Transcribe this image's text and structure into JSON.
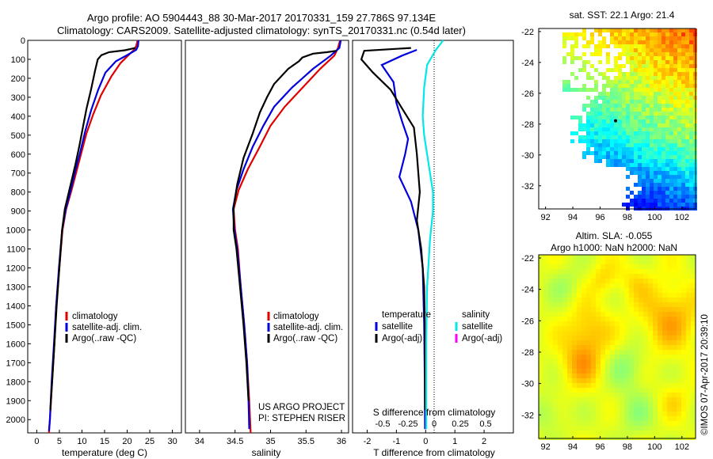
{
  "header": {
    "line1": "Argo profile: AO 5904443_88 30-Mar-2017 20170331_159 27.786S 97.134E",
    "line2": "Climatology: CARS2009. Satellite-adjusted climatology: synTS_20170331.nc (0.54d later)"
  },
  "colors": {
    "climatology": "#e00000",
    "satellite": "#0000dd",
    "argo": "#000000",
    "sal_satellite": "#00e8e8",
    "sal_argo": "#ff00ff"
  },
  "chart_data": [
    {
      "type": "line",
      "id": "temperature-profile",
      "xlabel": "temperature (deg C)",
      "xlim": [
        -2,
        32
      ],
      "ylim": [
        0,
        2070
      ],
      "y_inverted": true,
      "xticks": [
        0,
        5,
        10,
        15,
        20,
        25,
        30
      ],
      "yticks": [
        0,
        100,
        200,
        300,
        400,
        500,
        600,
        700,
        800,
        900,
        1000,
        1100,
        1200,
        1300,
        1400,
        1500,
        1600,
        1700,
        1800,
        1900,
        2000
      ],
      "legend": [
        "climatology",
        "satellite-adj. clim.",
        "Argo(..raw -QC)"
      ],
      "series": [
        {
          "name": "climatology",
          "color": "#e00000",
          "points": [
            [
              22.3,
              0
            ],
            [
              22.0,
              30
            ],
            [
              21.5,
              50
            ],
            [
              20.2,
              80
            ],
            [
              18.5,
              120
            ],
            [
              16.5,
              190
            ],
            [
              14.2,
              290
            ],
            [
              12.5,
              390
            ],
            [
              11.0,
              490
            ],
            [
              9.9,
              590
            ],
            [
              8.8,
              690
            ],
            [
              7.7,
              790
            ],
            [
              6.5,
              890
            ],
            [
              5.7,
              1000
            ],
            [
              5.0,
              1200
            ],
            [
              4.3,
              1400
            ],
            [
              3.9,
              1600
            ],
            [
              3.4,
              1800
            ],
            [
              2.9,
              2000
            ],
            [
              2.7,
              2070
            ]
          ]
        },
        {
          "name": "satellite-adj. clim.",
          "color": "#0000dd",
          "points": [
            [
              22.5,
              0
            ],
            [
              22.4,
              30
            ],
            [
              22.0,
              50
            ],
            [
              20.2,
              75
            ],
            [
              17.5,
              110
            ],
            [
              15.2,
              170
            ],
            [
              13.6,
              260
            ],
            [
              12.0,
              370
            ],
            [
              10.7,
              480
            ],
            [
              9.6,
              590
            ],
            [
              8.5,
              690
            ],
            [
              7.5,
              790
            ],
            [
              6.4,
              890
            ],
            [
              5.6,
              1000
            ],
            [
              4.9,
              1200
            ],
            [
              4.3,
              1400
            ],
            [
              3.8,
              1600
            ],
            [
              3.3,
              1800
            ],
            [
              2.9,
              2000
            ],
            [
              2.7,
              2060
            ]
          ]
        },
        {
          "name": "Argo(..raw -QC)",
          "color": "#000000",
          "points": [
            [
              21.8,
              40
            ],
            [
              19.5,
              52
            ],
            [
              16.0,
              62
            ],
            [
              14.3,
              78
            ],
            [
              13.5,
              100
            ],
            [
              12.9,
              160
            ],
            [
              12.0,
              260
            ],
            [
              11.0,
              360
            ],
            [
              10.2,
              460
            ],
            [
              9.4,
              560
            ],
            [
              8.5,
              660
            ],
            [
              7.2,
              790
            ],
            [
              6.2,
              890
            ],
            [
              5.6,
              1000
            ],
            [
              5.0,
              1200
            ],
            [
              4.4,
              1400
            ],
            [
              3.9,
              1600
            ],
            [
              3.4,
              1800
            ],
            [
              3.0,
              1950
            ]
          ]
        }
      ]
    },
    {
      "type": "line",
      "id": "salinity-profile",
      "xlabel": "salinity",
      "xlim": [
        33.8,
        36.1
      ],
      "ylim": [
        0,
        2070
      ],
      "y_inverted": true,
      "xticks": [
        34,
        34.5,
        35,
        35.5,
        36
      ],
      "legend": [
        "climatology",
        "satellite-adj. clim.",
        "Argo(..raw -QC)"
      ],
      "annotation": [
        "US ARGO PROJECT",
        "PI: STEPHEN RISER"
      ],
      "series": [
        {
          "name": "climatology",
          "color": "#e00000",
          "points": [
            [
              35.98,
              0
            ],
            [
              35.95,
              40
            ],
            [
              35.9,
              80
            ],
            [
              35.7,
              150
            ],
            [
              35.45,
              250
            ],
            [
              35.2,
              350
            ],
            [
              35.0,
              450
            ],
            [
              34.85,
              560
            ],
            [
              34.68,
              680
            ],
            [
              34.55,
              790
            ],
            [
              34.48,
              890
            ],
            [
              34.5,
              1000
            ],
            [
              34.54,
              1100
            ],
            [
              34.58,
              1300
            ],
            [
              34.63,
              1500
            ],
            [
              34.67,
              1700
            ],
            [
              34.7,
              1900
            ],
            [
              34.72,
              2070
            ]
          ]
        },
        {
          "name": "satellite-adj. clim.",
          "color": "#0000dd",
          "points": [
            [
              35.99,
              0
            ],
            [
              35.97,
              40
            ],
            [
              35.85,
              80
            ],
            [
              35.6,
              150
            ],
            [
              35.3,
              250
            ],
            [
              35.05,
              350
            ],
            [
              34.9,
              450
            ],
            [
              34.75,
              560
            ],
            [
              34.62,
              680
            ],
            [
              34.52,
              790
            ],
            [
              34.47,
              890
            ],
            [
              34.49,
              1000
            ],
            [
              34.53,
              1100
            ],
            [
              34.58,
              1300
            ],
            [
              34.63,
              1500
            ],
            [
              34.67,
              1700
            ],
            [
              34.69,
              1900
            ],
            [
              34.7,
              2050
            ]
          ]
        },
        {
          "name": "Argo(..raw -QC)",
          "color": "#000000",
          "points": [
            [
              35.93,
              55
            ],
            [
              35.8,
              62
            ],
            [
              35.6,
              70
            ],
            [
              35.45,
              90
            ],
            [
              35.4,
              110
            ],
            [
              35.25,
              150
            ],
            [
              35.05,
              230
            ],
            [
              34.95,
              300
            ],
            [
              34.85,
              380
            ],
            [
              34.75,
              490
            ],
            [
              34.62,
              620
            ],
            [
              34.53,
              760
            ],
            [
              34.48,
              880
            ],
            [
              34.48,
              1000
            ],
            [
              34.52,
              1100
            ],
            [
              34.57,
              1300
            ],
            [
              34.62,
              1500
            ],
            [
              34.66,
              1700
            ],
            [
              34.69,
              1900
            ]
          ]
        }
      ]
    },
    {
      "type": "line",
      "id": "difference-profile",
      "xlabel": "T difference from climatology",
      "xlabel_top": "S difference from climatology",
      "xlim": [
        -2.5,
        3.0
      ],
      "ylim": [
        0,
        2070
      ],
      "y_inverted": true,
      "xticks": [
        -2,
        -1,
        0,
        1,
        2
      ],
      "xticks_top": [
        "-0.5",
        "-0.25",
        "0",
        "0.25",
        "0.5"
      ],
      "legend_temperature_title": "temperature",
      "legend_salinity_title": "salinity",
      "legend": [
        "satellite",
        "Argo(-adj)",
        "satellite",
        "Argo(-adj)"
      ],
      "series": [
        {
          "name": "temperature satellite",
          "color": "#0000dd",
          "points": [
            [
              -0.3,
              50
            ],
            [
              -0.8,
              80
            ],
            [
              -1.5,
              130
            ],
            [
              -1.1,
              220
            ],
            [
              -1.0,
              330
            ],
            [
              -0.8,
              430
            ],
            [
              -0.6,
              520
            ],
            [
              -0.7,
              600
            ],
            [
              -0.9,
              720
            ],
            [
              -0.5,
              850
            ],
            [
              -0.25,
              1000
            ],
            [
              -0.1,
              1200
            ],
            [
              -0.05,
              1500
            ],
            [
              -0.03,
              1800
            ],
            [
              -0.02,
              2050
            ]
          ]
        },
        {
          "name": "temperature Argo(-adj)",
          "color": "#000000",
          "points": [
            [
              -0.5,
              40
            ],
            [
              -2.1,
              55
            ],
            [
              -2.2,
              100
            ],
            [
              -1.8,
              170
            ],
            [
              -1.2,
              260
            ],
            [
              -0.8,
              360
            ],
            [
              -0.4,
              460
            ],
            [
              -0.3,
              600
            ],
            [
              -0.2,
              800
            ],
            [
              -0.3,
              950
            ],
            [
              -0.15,
              1100
            ],
            [
              -0.05,
              1300
            ],
            [
              -0.03,
              1500
            ],
            [
              -0.02,
              1950
            ]
          ]
        },
        {
          "name": "salinity satellite",
          "color": "#00e8e8",
          "points": [
            [
              0.6,
              0
            ],
            [
              0.35,
              50
            ],
            [
              0.05,
              130
            ],
            [
              -0.05,
              250
            ],
            [
              -0.1,
              400
            ],
            [
              -0.05,
              500
            ],
            [
              0.05,
              600
            ],
            [
              0.15,
              700
            ],
            [
              0.25,
              800
            ],
            [
              0.25,
              900
            ],
            [
              0.15,
              1050
            ],
            [
              0.05,
              1300
            ],
            [
              0.02,
              1600
            ],
            [
              0.02,
              2050
            ]
          ]
        }
      ]
    },
    {
      "type": "heatmap",
      "id": "sst-map",
      "title": "sat. SST: 22.1  Argo: 21.4",
      "xticks": [
        92,
        94,
        96,
        98,
        100,
        102
      ],
      "yticks": [
        -22,
        -24,
        -26,
        -28,
        -30,
        -32
      ],
      "xlim": [
        91.5,
        103
      ],
      "ylim": [
        -33.5,
        -21.8
      ],
      "marker": [
        97.134,
        -27.786
      ]
    },
    {
      "type": "heatmap",
      "id": "sla-map",
      "title_line1": "Altim. SLA: -0.055",
      "title_line2": "Argo h1000: NaN  h2000: NaN",
      "xticks": [
        92,
        94,
        96,
        98,
        100,
        102
      ],
      "yticks": [
        -22,
        -24,
        -26,
        -28,
        -30,
        -32
      ],
      "xlim": [
        91.5,
        103
      ],
      "ylim": [
        -33.5,
        -21.8
      ],
      "side_label": "©IMOS 07-Apr-2017 20:39:10"
    }
  ]
}
